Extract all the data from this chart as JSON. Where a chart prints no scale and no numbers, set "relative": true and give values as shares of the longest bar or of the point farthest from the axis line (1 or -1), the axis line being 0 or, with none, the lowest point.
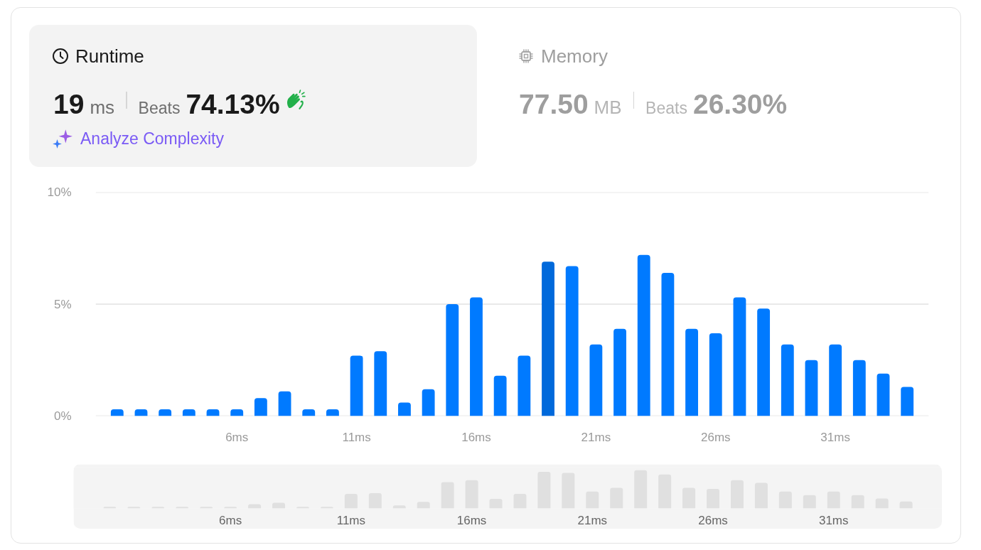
{
  "chart_data": [
    {
      "type": "other",
      "title": "Runtime",
      "annotations": [
        "19",
        "ms",
        "Beats",
        "74.13%",
        "Analyze Complexity"
      ]
    },
    {
      "type": "other",
      "title": "Memory",
      "annotations": [
        "77.50",
        "MB",
        "Beats",
        "26.30%"
      ]
    },
    {
      "type": "bar",
      "x": [
        1,
        2,
        3,
        4,
        5,
        6,
        7,
        8,
        9,
        10,
        11,
        12,
        13,
        14,
        15,
        16,
        17,
        18,
        19,
        20,
        21,
        22,
        23,
        24,
        25,
        26,
        27,
        28,
        29,
        30,
        31,
        32,
        33,
        34
      ],
      "values": [
        0.3,
        0.3,
        0.3,
        0.3,
        0.3,
        0.3,
        0.8,
        1.1,
        0.3,
        0.3,
        2.7,
        2.9,
        0.6,
        1.2,
        5.0,
        5.3,
        1.8,
        2.7,
        6.9,
        6.7,
        3.2,
        3.9,
        7.2,
        6.4,
        3.9,
        3.7,
        5.3,
        4.8,
        3.2,
        2.5,
        3.2,
        2.5,
        1.9,
        1.3
      ],
      "colors": [
        "#007aff",
        "#007aff",
        "#007aff",
        "#007aff",
        "#007aff",
        "#007aff",
        "#007aff",
        "#007aff",
        "#007aff",
        "#007aff",
        "#007aff",
        "#007aff",
        "#007aff",
        "#007aff",
        "#007aff",
        "#007aff",
        "#007aff",
        "#007aff",
        "#0069db",
        "#007aff",
        "#007aff",
        "#007aff",
        "#007aff",
        "#007aff",
        "#007aff",
        "#007aff",
        "#007aff",
        "#007aff",
        "#007aff",
        "#007aff",
        "#007aff",
        "#007aff",
        "#007aff",
        "#007aff"
      ],
      "xlim": [
        0.1,
        34.9
      ],
      "xticks": [
        {
          "value": 6,
          "label": "6ms"
        },
        {
          "value": 11,
          "label": "11ms"
        },
        {
          "value": 16,
          "label": "16ms"
        },
        {
          "value": 21,
          "label": "21ms"
        },
        {
          "value": 26,
          "label": "26ms"
        },
        {
          "value": 31,
          "label": "31ms"
        }
      ],
      "ylim": [
        0,
        10
      ],
      "yticks": [
        {
          "value": 0,
          "label": "0%"
        },
        {
          "value": 5,
          "label": "5%"
        },
        {
          "value": 10,
          "label": "10%"
        }
      ],
      "grid": "y"
    },
    {
      "type": "bar",
      "relative": true,
      "x": [
        1,
        2,
        3,
        4,
        5,
        6,
        7,
        8,
        9,
        10,
        11,
        12,
        13,
        14,
        15,
        16,
        17,
        18,
        19,
        20,
        21,
        22,
        23,
        24,
        25,
        26,
        27,
        28,
        29,
        30,
        31,
        32,
        33,
        34
      ],
      "values": [
        0.04,
        0.04,
        0.04,
        0.04,
        0.04,
        0.04,
        0.11,
        0.15,
        0.04,
        0.04,
        0.38,
        0.4,
        0.08,
        0.17,
        0.69,
        0.74,
        0.25,
        0.38,
        0.96,
        0.93,
        0.44,
        0.54,
        1,
        0.89,
        0.54,
        0.51,
        0.74,
        0.67,
        0.44,
        0.35,
        0.44,
        0.35,
        0.26,
        0.18
      ],
      "color": "#e0e0e0",
      "xlim": [
        -0.5,
        35.5
      ],
      "xticks": [
        {
          "value": 6,
          "label": "6ms"
        },
        {
          "value": 11,
          "label": "11ms"
        },
        {
          "value": 16,
          "label": "16ms"
        },
        {
          "value": 21,
          "label": "21ms"
        },
        {
          "value": 26,
          "label": "26ms"
        },
        {
          "value": 31,
          "label": "31ms"
        }
      ],
      "tick_labels": "x"
    }
  ]
}
